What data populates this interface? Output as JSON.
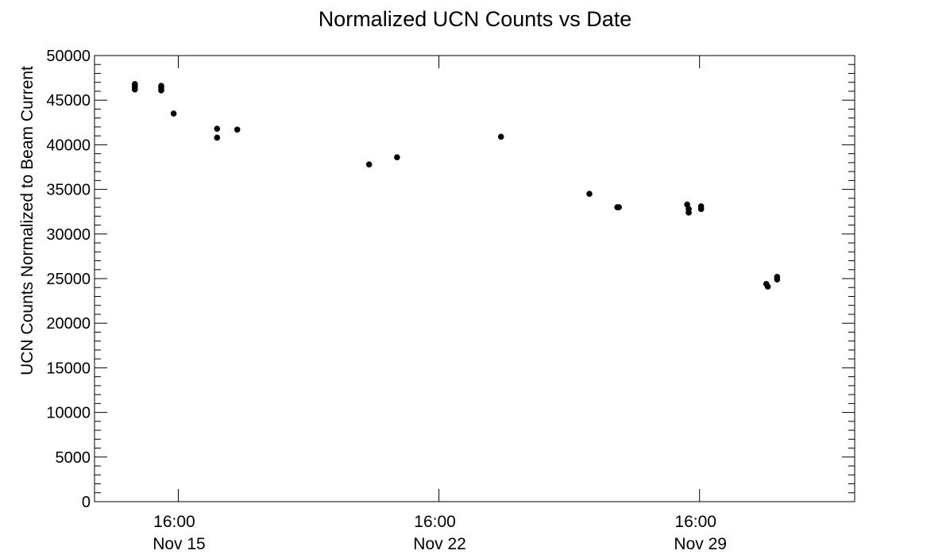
{
  "chart_data": {
    "type": "scatter",
    "title": "Normalized UCN Counts vs Date",
    "xlabel": "",
    "ylabel": "UCN Counts Normalized to Beam Current",
    "x_axis_type": "date",
    "xlim": [
      "2021-11-13 10:00",
      "2021-12-03 20:00"
    ],
    "ylim": [
      0,
      50000
    ],
    "y_ticks": [
      0,
      5000,
      10000,
      15000,
      20000,
      25000,
      30000,
      35000,
      40000,
      45000,
      50000
    ],
    "x_ticks": [
      {
        "x": "2021-11-15 16:00",
        "time": "16:00",
        "date": "Nov 15"
      },
      {
        "x": "2021-11-22 16:00",
        "time": "16:00",
        "date": "Nov 22"
      },
      {
        "x": "2021-11-29 16:00",
        "time": "16:00",
        "date": "Nov 29"
      }
    ],
    "grid": false,
    "marker_color": "#000000",
    "points": [
      {
        "x": "2021-11-14 12:00",
        "y": 46800
      },
      {
        "x": "2021-11-14 12:00",
        "y": 46500
      },
      {
        "x": "2021-11-14 12:00",
        "y": 46200
      },
      {
        "x": "2021-11-15 05:00",
        "y": 46600
      },
      {
        "x": "2021-11-15 05:00",
        "y": 46400
      },
      {
        "x": "2021-11-15 05:00",
        "y": 46100
      },
      {
        "x": "2021-11-15 13:00",
        "y": 43500
      },
      {
        "x": "2021-11-16 17:00",
        "y": 41800
      },
      {
        "x": "2021-11-16 17:00",
        "y": 40800
      },
      {
        "x": "2021-11-17 06:00",
        "y": 41700
      },
      {
        "x": "2021-11-20 19:00",
        "y": 37800
      },
      {
        "x": "2021-11-21 13:00",
        "y": 38600
      },
      {
        "x": "2021-11-24 08:00",
        "y": 40900
      },
      {
        "x": "2021-11-26 17:00",
        "y": 34500
      },
      {
        "x": "2021-11-27 11:00",
        "y": 33000
      },
      {
        "x": "2021-11-27 12:00",
        "y": 33000
      },
      {
        "x": "2021-11-29 08:00",
        "y": 33300
      },
      {
        "x": "2021-11-29 09:00",
        "y": 32800
      },
      {
        "x": "2021-11-29 09:00",
        "y": 32400
      },
      {
        "x": "2021-11-29 17:00",
        "y": 33100
      },
      {
        "x": "2021-11-29 17:00",
        "y": 32800
      },
      {
        "x": "2021-12-01 11:00",
        "y": 24400
      },
      {
        "x": "2021-12-01 12:00",
        "y": 24100
      },
      {
        "x": "2021-12-01 18:00",
        "y": 25200
      },
      {
        "x": "2021-12-01 18:00",
        "y": 24900
      }
    ]
  }
}
